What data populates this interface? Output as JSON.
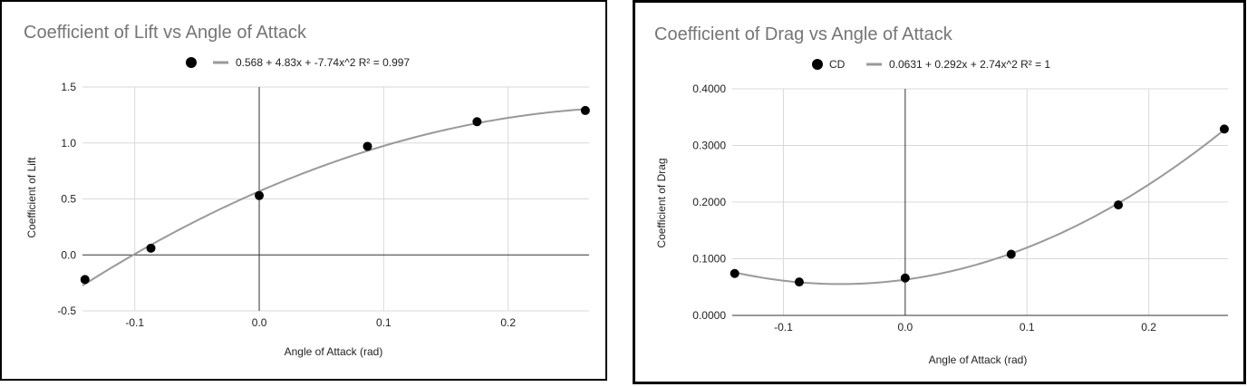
{
  "chart_data": [
    {
      "type": "scatter",
      "title": "Coefficient of Lift vs Angle of Attack",
      "xlabel": "Angle of Attack (rad)",
      "ylabel": "Coefficient of Lift",
      "xlim": [
        -0.142,
        0.265
      ],
      "ylim": [
        -0.5,
        1.5
      ],
      "x_ticks": [
        "-0.1",
        "0.0",
        "0.1",
        "0.2"
      ],
      "x_tick_values": [
        -0.1,
        0.0,
        0.1,
        0.2
      ],
      "y_ticks": [
        "-0.5",
        "0.0",
        "0.5",
        "1.0",
        "1.5"
      ],
      "y_tick_values": [
        -0.5,
        0.0,
        0.5,
        1.0,
        1.5
      ],
      "grid": true,
      "legend_position": "top",
      "series": [
        {
          "name": "",
          "x": [
            -0.14,
            -0.087,
            0.0,
            0.087,
            0.175,
            0.262
          ],
          "y": [
            -0.22,
            0.06,
            0.53,
            0.97,
            1.19,
            1.29
          ]
        }
      ],
      "trendline": {
        "label": "0.568 + 4.83x + -7.74x^2 R² = 0.997",
        "coefficients": [
          0.568,
          4.83,
          -7.74
        ]
      },
      "colors": {
        "points": "#000000",
        "trendline": "#999999",
        "grid": "#d9d9d9",
        "title": "#757575"
      }
    },
    {
      "type": "scatter",
      "title": "Coefficient of Drag vs Angle of Attack",
      "xlabel": "Angle of Attack (rad)",
      "ylabel": "Coefficient of Drag",
      "xlim": [
        -0.142,
        0.265
      ],
      "ylim": [
        0.0,
        0.4
      ],
      "x_ticks": [
        "-0.1",
        "0.0",
        "0.1",
        "0.2"
      ],
      "x_tick_values": [
        -0.1,
        0.0,
        0.1,
        0.2
      ],
      "y_ticks": [
        "0.0000",
        "0.1000",
        "0.2000",
        "0.3000",
        "0.4000"
      ],
      "y_tick_values": [
        0.0,
        0.1,
        0.2,
        0.3,
        0.4
      ],
      "grid": true,
      "legend_position": "top",
      "series": [
        {
          "name": "CD",
          "x": [
            -0.14,
            -0.087,
            0.0,
            0.087,
            0.175,
            0.262
          ],
          "y": [
            0.074,
            0.059,
            0.066,
            0.108,
            0.195,
            0.329
          ]
        }
      ],
      "trendline": {
        "label": "0.0631 + 0.292x + 2.74x^2 R² = 1",
        "coefficients": [
          0.0631,
          0.292,
          2.74
        ]
      },
      "colors": {
        "points": "#000000",
        "trendline": "#999999",
        "grid": "#d9d9d9",
        "title": "#757575"
      }
    }
  ]
}
